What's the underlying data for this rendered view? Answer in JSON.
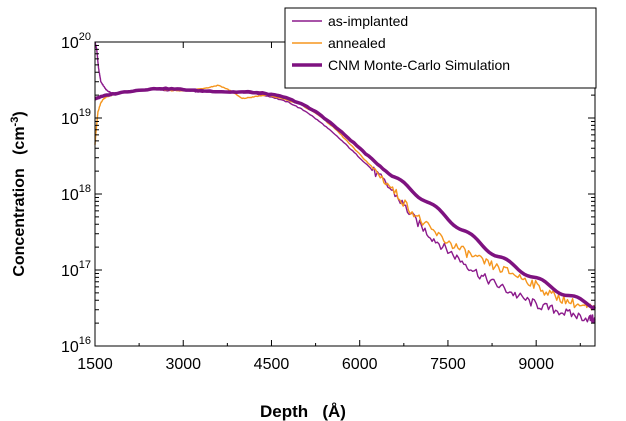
{
  "chart_data": {
    "type": "line",
    "xlabel": "Depth   (Å)",
    "ylabel": "Concentration   (cm",
    "ylabel_unit_exp": "-3",
    "ylabel_close": ")",
    "xlim": [
      1500,
      10000
    ],
    "ylim": [
      1e+16,
      1e+20
    ],
    "yscale": "log",
    "x_ticks": [
      "1500",
      "3000",
      "4500",
      "6000",
      "7500",
      "9000"
    ],
    "y_ticks": [
      {
        "base": "10",
        "exp": "16"
      },
      {
        "base": "10",
        "exp": "17"
      },
      {
        "base": "10",
        "exp": "18"
      },
      {
        "base": "10",
        "exp": "19"
      },
      {
        "base": "10",
        "exp": "20"
      }
    ],
    "legend_position": "top-right",
    "series": [
      {
        "name": "as-implanted",
        "color": "#8b1a8b",
        "style": "thin",
        "x": [
          1500,
          1530,
          1560,
          1600,
          1650,
          1700,
          1800,
          2000,
          2200,
          2500,
          2700,
          3000,
          3300,
          3600,
          3900,
          4200,
          4500,
          4800,
          5100,
          5400,
          5700,
          6000,
          6300,
          6600,
          6900,
          7200,
          7500,
          7800,
          8100,
          8400,
          8700,
          9000,
          9300,
          9600,
          9900,
          10000
        ],
        "y": [
          1e+20,
          8e+19,
          4.5e+19,
          3e+19,
          2.6e+19,
          2.3e+19,
          2.1e+19,
          2.2e+19,
          2.3e+19,
          2.4e+19,
          2.3e+19,
          2.3e+19,
          2.2e+19,
          2.2e+19,
          2.2e+19,
          2.1e+19,
          1.9e+19,
          1.6e+19,
          1.2e+19,
          8e+18,
          5e+18,
          3e+18,
          1.8e+18,
          1e+18,
          5e+17,
          2.8e+17,
          1.8e+17,
          1.2e+17,
          8e+16,
          6e+16,
          4.5e+16,
          3.5e+16,
          3e+16,
          2.6e+16,
          2.3e+16,
          2.2e+16
        ]
      },
      {
        "name": "annealed",
        "color": "#f5961e",
        "style": "thin",
        "x": [
          1500,
          1520,
          1550,
          1600,
          1650,
          1700,
          1800,
          1900,
          2000,
          2200,
          2500,
          2800,
          3100,
          3400,
          3600,
          3800,
          4000,
          4200,
          4400,
          4700,
          5000,
          5300,
          5600,
          5900,
          6200,
          6500,
          6800,
          7100,
          7400,
          7700,
          8000,
          8300,
          8600,
          8900,
          9200,
          9500,
          9800,
          10000
        ],
        "y": [
          4.5e+18,
          7e+18,
          1.2e+19,
          1.6e+19,
          1.8e+19,
          1.9e+19,
          2e+19,
          2.1e+19,
          2.2e+19,
          2.3e+19,
          2.4e+19,
          2.3e+19,
          2.3e+19,
          2.5e+19,
          2.7e+19,
          2.3e+19,
          1.8e+19,
          1.9e+19,
          2e+19,
          1.8e+19,
          1.5e+19,
          1.1e+19,
          7e+18,
          4e+18,
          2.3e+18,
          1.3e+18,
          7e+17,
          4e+17,
          2.6e+17,
          1.9e+17,
          1.4e+17,
          1.1e+17,
          9e+16,
          7e+16,
          5e+16,
          4e+16,
          3.3e+16,
          3e+16
        ]
      },
      {
        "name": "CNM Monte-Carlo Simulation",
        "color": "#7e1280",
        "style": "thick",
        "x": [
          1500,
          1700,
          2000,
          2300,
          2600,
          2900,
          3200,
          3500,
          3800,
          4100,
          4400,
          4700,
          5000,
          5300,
          5600,
          5900,
          6200,
          6500,
          6800,
          7100,
          7400,
          7700,
          8000,
          8300,
          8600,
          8900,
          9200,
          9500,
          9800,
          10000
        ],
        "y": [
          1.8e+19,
          2e+19,
          2.2e+19,
          2.35e+19,
          2.45e+19,
          2.4e+19,
          2.3e+19,
          2.25e+19,
          2.2e+19,
          2.2e+19,
          2.1e+19,
          1.9e+19,
          1.55e+19,
          1.15e+19,
          7.5e+18,
          4.7e+18,
          2.9e+18,
          1.85e+18,
          1.25e+18,
          8.5e+17,
          5.5e+17,
          3.6e+17,
          2.4e+17,
          1.6e+17,
          1.15e+17,
          8.5e+16,
          6.3e+16,
          4.8e+16,
          3.8e+16,
          3.3e+16
        ]
      }
    ]
  }
}
